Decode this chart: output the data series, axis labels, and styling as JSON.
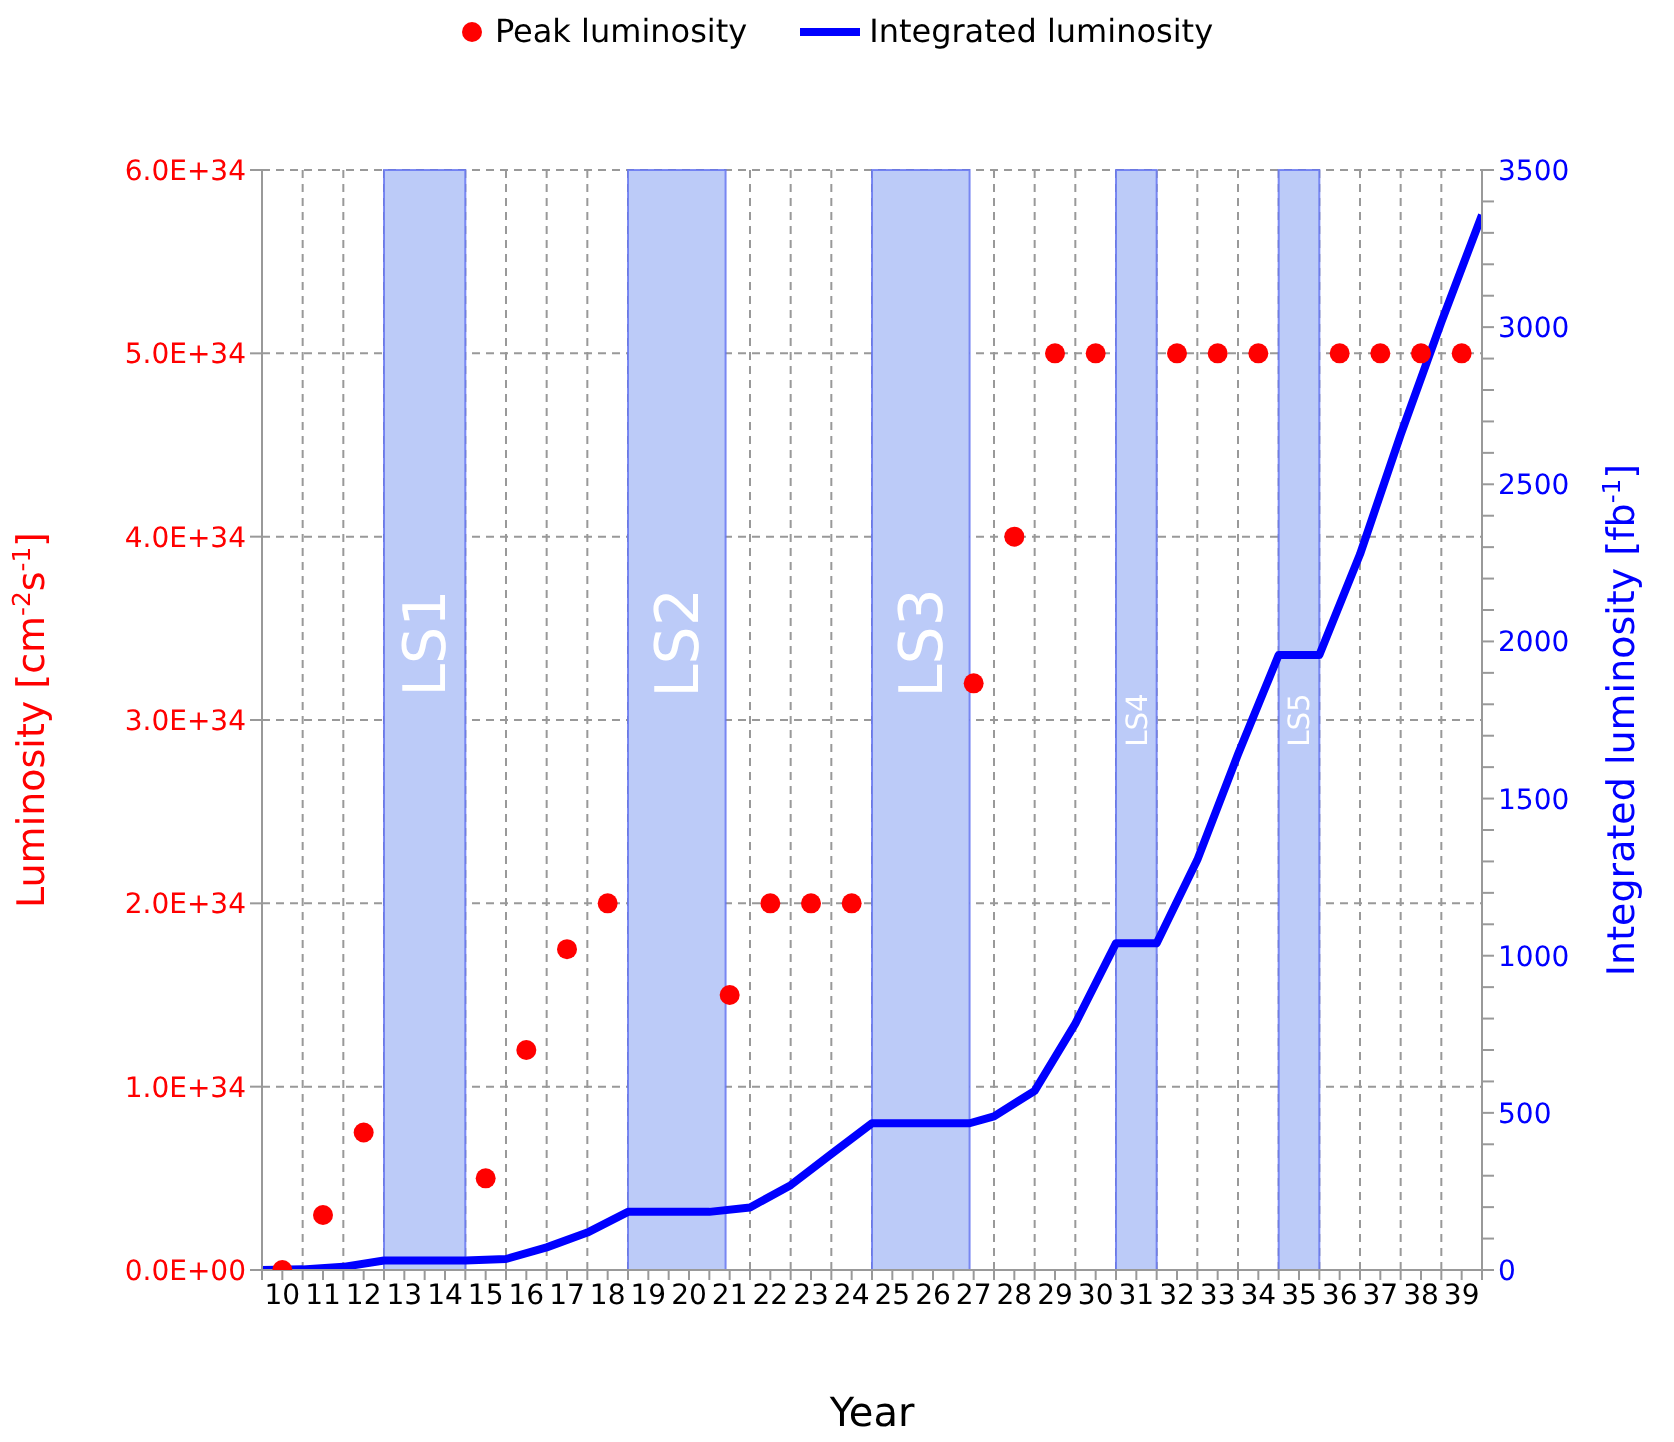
{
  "chart_data": {
    "type": "scatter",
    "xlabel": "Year",
    "ylabel": "Luminosity [cm$^{-2}$s$^{-1}$]",
    "y2label": "Integrated luminosity [fb$^{-1}$]",
    "xlim": [
      9.5,
      39.5
    ],
    "xticks": [
      {
        "value": 9.5,
        "label": null
      },
      10,
      {
        "value": 10.5,
        "label": null
      },
      11,
      {
        "value": 11.5,
        "label": null
      },
      12,
      {
        "value": 12.5,
        "label": null
      },
      13,
      {
        "value": 13.5,
        "label": null
      },
      14,
      {
        "value": 14.5,
        "label": null
      },
      15,
      {
        "value": 15.5,
        "label": null
      },
      16,
      {
        "value": 16.5,
        "label": null
      },
      17,
      {
        "value": 17.5,
        "label": null
      },
      18,
      {
        "value": 18.5,
        "label": null
      },
      19,
      {
        "value": 19.5,
        "label": null
      },
      20,
      {
        "value": 20.5,
        "label": null
      },
      21,
      {
        "value": 21.5,
        "label": null
      },
      22,
      {
        "value": 22.5,
        "label": null
      },
      23,
      {
        "value": 23.5,
        "label": null
      },
      24,
      {
        "value": 24.5,
        "label": null
      },
      25,
      {
        "value": 25.5,
        "label": null
      },
      26,
      {
        "value": 26.5,
        "label": null
      },
      27,
      {
        "value": 27.5,
        "label": null
      },
      28,
      {
        "value": 28.5,
        "label": null
      },
      29,
      {
        "value": 29.5,
        "label": null
      },
      30,
      {
        "value": 30.5,
        "label": null
      },
      31,
      {
        "value": 31.5,
        "label": null
      },
      32,
      {
        "value": 32.5,
        "label": null
      },
      33,
      {
        "value": 33.5,
        "label": null
      },
      34,
      {
        "value": 34.5,
        "label": null
      },
      35,
      {
        "value": 35.5,
        "label": null
      },
      36,
      {
        "value": 36.5,
        "label": null
      },
      37,
      {
        "value": 37.5,
        "label": null
      },
      38,
      {
        "value": 38.5,
        "label": null
      },
      39,
      {
        "value": 39.5,
        "label": null
      }
    ],
    "ylim": [
      0,
      6e+34
    ],
    "yticks": [
      {
        "value": 0,
        "label": "0.0E+00"
      },
      {
        "value": 1e+34,
        "label": "1.0E+34"
      },
      {
        "value": 2e+34,
        "label": "2.0E+34"
      },
      {
        "value": 3e+34,
        "label": "3.0E+34"
      },
      {
        "value": 4e+34,
        "label": "4.0E+34"
      },
      {
        "value": 5e+34,
        "label": "5.0E+34"
      },
      {
        "value": 6e+34,
        "label": "6.0E+34"
      }
    ],
    "y2lim": [
      0,
      3500
    ],
    "y2ticks": [
      0,
      {
        "value": 100,
        "label": null
      },
      {
        "value": 200,
        "label": null
      },
      {
        "value": 300,
        "label": null
      },
      {
        "value": 400,
        "label": null
      },
      500,
      {
        "value": 600,
        "label": null
      },
      {
        "value": 700,
        "label": null
      },
      {
        "value": 800,
        "label": null
      },
      {
        "value": 900,
        "label": null
      },
      1000,
      {
        "value": 1100,
        "label": null
      },
      {
        "value": 1200,
        "label": null
      },
      {
        "value": 1300,
        "label": null
      },
      {
        "value": 1400,
        "label": null
      },
      1500,
      {
        "value": 1600,
        "label": null
      },
      {
        "value": 1700,
        "label": null
      },
      {
        "value": 1800,
        "label": null
      },
      {
        "value": 1900,
        "label": null
      },
      2000,
      {
        "value": 2100,
        "label": null
      },
      {
        "value": 2200,
        "label": null
      },
      {
        "value": 2300,
        "label": null
      },
      {
        "value": 2400,
        "label": null
      },
      2500,
      {
        "value": 2600,
        "label": null
      },
      {
        "value": 2700,
        "label": null
      },
      {
        "value": 2800,
        "label": null
      },
      {
        "value": 2900,
        "label": null
      },
      3000,
      {
        "value": 3100,
        "label": null
      },
      {
        "value": 3200,
        "label": null
      },
      {
        "value": 3300,
        "label": null
      },
      {
        "value": 3400,
        "label": null
      },
      3500
    ],
    "series": [
      {
        "name": "Peak luminosity",
        "color": "#ff0000",
        "marker": "circle",
        "x": [
          10,
          11,
          12,
          15,
          16,
          17,
          18,
          21,
          22,
          23,
          24,
          27,
          28,
          29,
          30,
          32,
          33,
          34,
          36,
          37,
          38,
          39
        ],
        "values": [
          0,
          3e+33,
          7.5e+33,
          5e+33,
          1.2e+34,
          1.75e+34,
          2e+34,
          1.5e+34,
          2e+34,
          2e+34,
          2e+34,
          3.2e+34,
          4e+34,
          5e+34,
          5e+34,
          5e+34,
          5e+34,
          5e+34,
          5e+34,
          5e+34,
          5e+34,
          5e+34
        ]
      },
      {
        "name": "Integrated luminosity",
        "type": "line",
        "axis": "y2",
        "color": "#0000ff",
        "marker": "none",
        "x": [
          9.5,
          10.5,
          11.5,
          12.5,
          14.5,
          15.5,
          16.5,
          17.5,
          18.5,
          20.5,
          21.5,
          22.5,
          23.5,
          24.5,
          26.9,
          27.5,
          28.5,
          29.5,
          30.5,
          31.5,
          32.5,
          33.5,
          34.5,
          35.5,
          36.5,
          37.5,
          38.5,
          39.5
        ],
        "values": [
          0,
          2,
          10,
          30,
          30,
          35,
          72,
          119,
          185,
          185,
          199,
          270,
          369,
          467,
          467,
          489,
          570,
          784,
          1040,
          1040,
          1305,
          1641,
          1957,
          1957,
          2277,
          2658,
          3016,
          3357
        ]
      }
    ],
    "bands": [
      {
        "axis": "x",
        "from": 12.5,
        "to": 14.5,
        "label": "LS1",
        "color": "#bccbf8"
      },
      {
        "axis": "x",
        "from": 18.5,
        "to": 20.9,
        "label": "LS2",
        "color": "#bccbf8"
      },
      {
        "axis": "x",
        "from": 24.5,
        "to": 26.9,
        "label": "LS3",
        "color": "#bccbf8"
      },
      {
        "axis": "x",
        "from": 30.5,
        "to": 31.5,
        "label": "LS4",
        "color": "#bccbf8"
      },
      {
        "axis": "x",
        "from": 34.5,
        "to": 35.5,
        "label": "LS5",
        "color": "#bccbf8"
      }
    ],
    "grid": true,
    "legend": "top"
  }
}
